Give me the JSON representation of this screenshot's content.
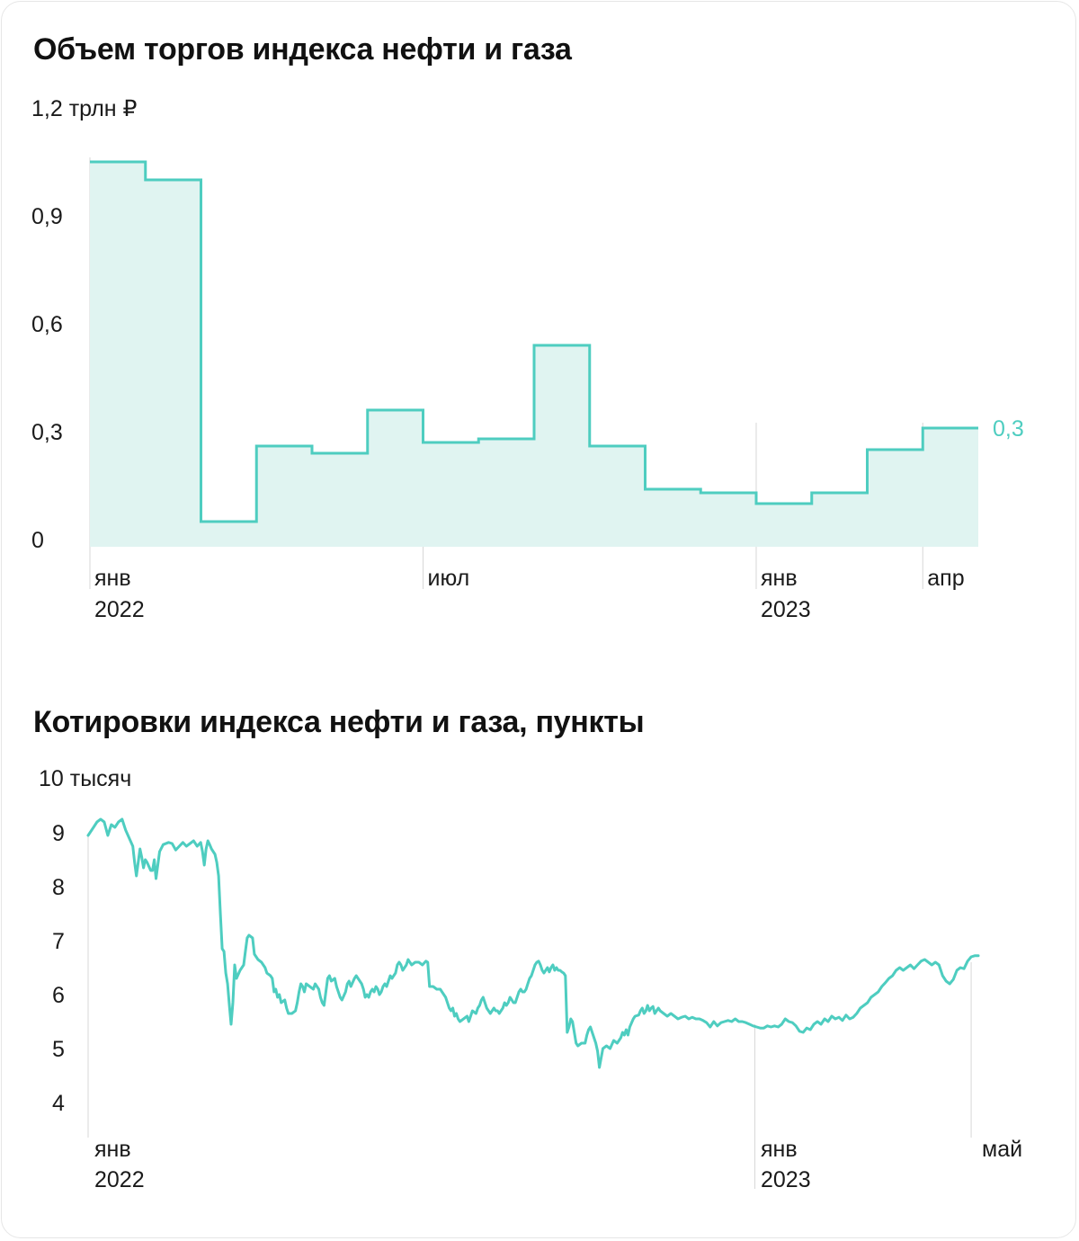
{
  "chart_data": [
    {
      "type": "area",
      "title": "Объем торгов индекса нефти и газа",
      "unit_label": "1,2 трлн ₽",
      "y_ticks": [
        "0",
        "0,3",
        "0,6",
        "0,9"
      ],
      "ylim": [
        0,
        1.2
      ],
      "x_ticks": [
        {
          "label": "янв",
          "sub": "2022"
        },
        {
          "label": "июл",
          "sub": ""
        },
        {
          "label": "янв",
          "sub": "2023"
        },
        {
          "label": "апр",
          "sub": ""
        }
      ],
      "categories": [
        "янв 2022",
        "фев 2022",
        "мар 2022",
        "апр 2022",
        "май 2022",
        "июн 2022",
        "июл 2022",
        "авг 2022",
        "сен 2022",
        "окт 2022",
        "ноя 2022",
        "дек 2022",
        "янв 2023",
        "фев 2023",
        "мар 2023",
        "апр 2023"
      ],
      "values": [
        1.05,
        1.0,
        0.05,
        0.26,
        0.24,
        0.36,
        0.27,
        0.28,
        0.54,
        0.26,
        0.14,
        0.13,
        0.1,
        0.13,
        0.25,
        0.31
      ],
      "last_label": "0,3",
      "grid": false,
      "colors": {
        "line": "#4ecdc0",
        "fill": "#e0f4f1",
        "last_label": "#4ecdc0"
      }
    },
    {
      "type": "line",
      "title": "Котировки индекса нефти и газа, пункты",
      "unit_label": "10 тысяч",
      "y_ticks": [
        "4",
        "5",
        "6",
        "7",
        "8",
        "9"
      ],
      "ylim": [
        4,
        10
      ],
      "x_ticks": [
        {
          "label": "янв",
          "sub": "2022"
        },
        {
          "label": "янв",
          "sub": "2023"
        },
        {
          "label": "май",
          "sub": ""
        }
      ],
      "x_range_days": [
        0,
        500
      ],
      "points": [
        [
          0,
          8.95
        ],
        [
          3,
          9.1
        ],
        [
          5,
          9.2
        ],
        [
          7,
          9.25
        ],
        [
          9,
          9.2
        ],
        [
          11,
          8.95
        ],
        [
          13,
          9.15
        ],
        [
          15,
          9.1
        ],
        [
          17,
          9.2
        ],
        [
          19,
          9.25
        ],
        [
          21,
          9.05
        ],
        [
          23,
          8.9
        ],
        [
          25,
          8.75
        ],
        [
          26,
          8.45
        ],
        [
          27,
          8.2
        ],
        [
          28,
          8.45
        ],
        [
          29,
          8.7
        ],
        [
          30,
          8.55
        ],
        [
          31,
          8.35
        ],
        [
          32,
          8.5
        ],
        [
          33,
          8.45
        ],
        [
          35,
          8.3
        ],
        [
          36,
          8.3
        ],
        [
          37,
          8.5
        ],
        [
          38,
          8.15
        ],
        [
          40,
          8.65
        ],
        [
          42,
          8.78
        ],
        [
          45,
          8.82
        ],
        [
          47,
          8.8
        ],
        [
          49,
          8.68
        ],
        [
          51,
          8.75
        ],
        [
          53,
          8.82
        ],
        [
          55,
          8.75
        ],
        [
          57,
          8.8
        ],
        [
          59,
          8.85
        ],
        [
          61,
          8.75
        ],
        [
          63,
          8.82
        ],
        [
          64,
          8.65
        ],
        [
          65,
          8.4
        ],
        [
          66,
          8.7
        ],
        [
          67,
          8.85
        ],
        [
          68,
          8.78
        ],
        [
          69,
          8.7
        ],
        [
          71,
          8.6
        ],
        [
          72,
          8.45
        ],
        [
          73,
          8.2
        ],
        [
          74,
          7.5
        ],
        [
          75,
          6.85
        ],
        [
          76,
          6.8
        ],
        [
          77,
          6.4
        ],
        [
          78,
          6.2
        ],
        [
          79,
          5.8
        ],
        [
          80,
          5.45
        ],
        [
          81,
          5.85
        ],
        [
          82,
          6.55
        ],
        [
          83,
          6.3
        ],
        [
          85,
          6.45
        ],
        [
          87,
          6.55
        ],
        [
          88,
          6.8
        ],
        [
          89,
          7.05
        ],
        [
          90,
          7.1
        ],
        [
          92,
          7.05
        ],
        [
          93,
          6.75
        ],
        [
          95,
          6.65
        ],
        [
          97,
          6.6
        ],
        [
          99,
          6.5
        ],
        [
          100,
          6.4
        ],
        [
          102,
          6.35
        ],
        [
          103,
          6.3
        ],
        [
          104,
          6.05
        ],
        [
          105,
          6.1
        ],
        [
          106,
          5.95
        ],
        [
          107,
          6.0
        ],
        [
          108,
          5.85
        ],
        [
          110,
          5.9
        ],
        [
          111,
          5.75
        ],
        [
          112,
          5.65
        ],
        [
          114,
          5.65
        ],
        [
          116,
          5.7
        ],
        [
          117,
          5.85
        ],
        [
          118,
          6.05
        ],
        [
          119,
          6.2
        ],
        [
          120,
          6.15
        ],
        [
          121,
          6.05
        ],
        [
          122,
          6.2
        ],
        [
          124,
          6.15
        ],
        [
          126,
          6.1
        ],
        [
          127,
          6.2
        ],
        [
          129,
          6.1
        ],
        [
          130,
          5.95
        ],
        [
          131,
          5.85
        ],
        [
          132,
          5.8
        ],
        [
          133,
          6.05
        ],
        [
          134,
          6.3
        ],
        [
          135,
          6.35
        ],
        [
          136,
          6.25
        ],
        [
          138,
          6.3
        ],
        [
          139,
          6.15
        ],
        [
          140,
          6.05
        ],
        [
          141,
          5.95
        ],
        [
          142,
          5.9
        ],
        [
          144,
          6.05
        ],
        [
          145,
          6.2
        ],
        [
          146,
          6.25
        ],
        [
          147,
          6.15
        ],
        [
          149,
          6.3
        ],
        [
          150,
          6.35
        ],
        [
          151,
          6.3
        ],
        [
          152,
          6.25
        ],
        [
          153,
          6.2
        ],
        [
          154,
          6.1
        ],
        [
          155,
          5.95
        ],
        [
          156,
          6.0
        ],
        [
          157,
          5.95
        ],
        [
          158,
          6.05
        ],
        [
          159,
          6.1
        ],
        [
          160,
          6.05
        ],
        [
          161,
          6.15
        ],
        [
          162,
          6.1
        ],
        [
          163,
          6.0
        ],
        [
          164,
          6.05
        ],
        [
          165,
          6.15
        ],
        [
          166,
          6.2
        ],
        [
          167,
          6.15
        ],
        [
          168,
          6.25
        ],
        [
          169,
          6.35
        ],
        [
          170,
          6.3
        ],
        [
          171,
          6.35
        ],
        [
          172,
          6.4
        ],
        [
          173,
          6.55
        ],
        [
          174,
          6.6
        ],
        [
          175,
          6.55
        ],
        [
          176,
          6.45
        ],
        [
          177,
          6.5
        ],
        [
          178,
          6.55
        ],
        [
          179,
          6.65
        ],
        [
          180,
          6.6
        ],
        [
          181,
          6.55
        ],
        [
          183,
          6.6
        ],
        [
          185,
          6.6
        ],
        [
          187,
          6.55
        ],
        [
          189,
          6.62
        ],
        [
          190,
          6.6
        ],
        [
          191,
          6.15
        ],
        [
          193,
          6.15
        ],
        [
          195,
          6.1
        ],
        [
          197,
          6.1
        ],
        [
          199,
          6.0
        ],
        [
          200,
          5.95
        ],
        [
          201,
          5.85
        ],
        [
          202,
          5.75
        ],
        [
          203,
          5.7
        ],
        [
          204,
          5.75
        ],
        [
          205,
          5.6
        ],
        [
          206,
          5.65
        ],
        [
          207,
          5.55
        ],
        [
          208,
          5.5
        ],
        [
          210,
          5.55
        ],
        [
          212,
          5.6
        ],
        [
          213,
          5.5
        ],
        [
          214,
          5.6
        ],
        [
          215,
          5.7
        ],
        [
          217,
          5.65
        ],
        [
          218,
          5.75
        ],
        [
          219,
          5.8
        ],
        [
          220,
          5.9
        ],
        [
          221,
          5.95
        ],
        [
          222,
          5.85
        ],
        [
          223,
          5.75
        ],
        [
          224,
          5.7
        ],
        [
          225,
          5.65
        ],
        [
          226,
          5.7
        ],
        [
          227,
          5.75
        ],
        [
          228,
          5.7
        ],
        [
          229,
          5.7
        ],
        [
          230,
          5.65
        ],
        [
          232,
          5.75
        ],
        [
          233,
          5.85
        ],
        [
          234,
          5.8
        ],
        [
          235,
          5.85
        ],
        [
          236,
          5.95
        ],
        [
          237,
          5.9
        ],
        [
          238,
          5.85
        ],
        [
          239,
          5.85
        ],
        [
          240,
          5.95
        ],
        [
          241,
          6.05
        ],
        [
          242,
          6.1
        ],
        [
          243,
          6.05
        ],
        [
          244,
          6.05
        ],
        [
          245,
          6.1
        ],
        [
          246,
          6.2
        ],
        [
          247,
          6.3
        ],
        [
          248,
          6.35
        ],
        [
          249,
          6.45
        ],
        [
          250,
          6.55
        ],
        [
          251,
          6.6
        ],
        [
          252,
          6.62
        ],
        [
          253,
          6.55
        ],
        [
          254,
          6.45
        ],
        [
          255,
          6.4
        ],
        [
          256,
          6.45
        ],
        [
          257,
          6.5
        ],
        [
          258,
          6.42
        ],
        [
          259,
          6.5
        ],
        [
          260,
          6.55
        ],
        [
          261,
          6.45
        ],
        [
          262,
          6.5
        ],
        [
          263,
          6.45
        ],
        [
          264,
          6.45
        ],
        [
          265,
          6.42
        ],
        [
          266,
          6.4
        ],
        [
          267,
          6.35
        ],
        [
          268,
          5.3
        ],
        [
          269,
          5.4
        ],
        [
          270,
          5.55
        ],
        [
          271,
          5.5
        ],
        [
          272,
          5.3
        ],
        [
          273,
          5.1
        ],
        [
          274,
          5.05
        ],
        [
          276,
          5.1
        ],
        [
          278,
          5.1
        ],
        [
          279,
          5.25
        ],
        [
          280,
          5.35
        ],
        [
          281,
          5.4
        ],
        [
          282,
          5.3
        ],
        [
          283,
          5.2
        ],
        [
          284,
          5.1
        ],
        [
          285,
          4.95
        ],
        [
          286,
          4.65
        ],
        [
          288,
          5.0
        ],
        [
          290,
          5.05
        ],
        [
          292,
          5.0
        ],
        [
          294,
          5.15
        ],
        [
          296,
          5.1
        ],
        [
          297,
          5.15
        ],
        [
          298,
          5.2
        ],
        [
          299,
          5.3
        ],
        [
          300,
          5.25
        ],
        [
          301,
          5.35
        ],
        [
          302,
          5.25
        ],
        [
          303,
          5.4
        ],
        [
          305,
          5.55
        ],
        [
          306,
          5.6
        ],
        [
          308,
          5.62
        ],
        [
          309,
          5.7
        ],
        [
          310,
          5.75
        ],
        [
          311,
          5.65
        ],
        [
          312,
          5.7
        ],
        [
          313,
          5.8
        ],
        [
          314,
          5.7
        ],
        [
          315,
          5.75
        ],
        [
          316,
          5.78
        ],
        [
          317,
          5.65
        ],
        [
          318,
          5.7
        ],
        [
          319,
          5.75
        ],
        [
          320,
          5.7
        ],
        [
          322,
          5.65
        ],
        [
          324,
          5.6
        ],
        [
          326,
          5.65
        ],
        [
          328,
          5.6
        ],
        [
          330,
          5.55
        ],
        [
          332,
          5.58
        ],
        [
          334,
          5.6
        ],
        [
          336,
          5.55
        ],
        [
          338,
          5.58
        ],
        [
          340,
          5.55
        ],
        [
          342,
          5.55
        ],
        [
          344,
          5.52
        ],
        [
          346,
          5.48
        ],
        [
          348,
          5.4
        ],
        [
          350,
          5.5
        ],
        [
          352,
          5.42
        ],
        [
          354,
          5.48
        ],
        [
          356,
          5.5
        ],
        [
          358,
          5.52
        ],
        [
          360,
          5.5
        ],
        [
          362,
          5.55
        ],
        [
          364,
          5.5
        ],
        [
          366,
          5.5
        ],
        [
          368,
          5.48
        ],
        [
          370,
          5.45
        ],
        [
          372,
          5.42
        ],
        [
          374,
          5.4
        ],
        [
          376,
          5.38
        ],
        [
          378,
          5.38
        ],
        [
          380,
          5.42
        ],
        [
          382,
          5.4
        ],
        [
          384,
          5.42
        ],
        [
          386,
          5.4
        ],
        [
          388,
          5.45
        ],
        [
          390,
          5.55
        ],
        [
          392,
          5.5
        ],
        [
          394,
          5.48
        ],
        [
          396,
          5.42
        ],
        [
          398,
          5.32
        ],
        [
          400,
          5.3
        ],
        [
          402,
          5.38
        ],
        [
          404,
          5.35
        ],
        [
          406,
          5.45
        ],
        [
          408,
          5.5
        ],
        [
          410,
          5.45
        ],
        [
          412,
          5.55
        ],
        [
          414,
          5.5
        ],
        [
          416,
          5.6
        ],
        [
          418,
          5.55
        ],
        [
          420,
          5.58
        ],
        [
          422,
          5.52
        ],
        [
          424,
          5.62
        ],
        [
          426,
          5.55
        ],
        [
          428,
          5.58
        ],
        [
          430,
          5.65
        ],
        [
          432,
          5.75
        ],
        [
          434,
          5.8
        ],
        [
          436,
          5.85
        ],
        [
          438,
          5.95
        ],
        [
          440,
          6.0
        ],
        [
          442,
          6.05
        ],
        [
          444,
          6.15
        ],
        [
          446,
          6.22
        ],
        [
          448,
          6.3
        ],
        [
          450,
          6.35
        ],
        [
          452,
          6.45
        ],
        [
          454,
          6.5
        ],
        [
          456,
          6.45
        ],
        [
          458,
          6.5
        ],
        [
          460,
          6.55
        ],
        [
          462,
          6.48
        ],
        [
          464,
          6.55
        ],
        [
          466,
          6.62
        ],
        [
          468,
          6.65
        ],
        [
          470,
          6.6
        ],
        [
          472,
          6.55
        ],
        [
          474,
          6.6
        ],
        [
          476,
          6.55
        ],
        [
          478,
          6.35
        ],
        [
          480,
          6.25
        ],
        [
          482,
          6.2
        ],
        [
          484,
          6.28
        ],
        [
          486,
          6.45
        ],
        [
          488,
          6.5
        ],
        [
          490,
          6.48
        ],
        [
          492,
          6.62
        ],
        [
          494,
          6.7
        ],
        [
          496,
          6.72
        ],
        [
          498,
          6.72
        ]
      ],
      "grid": false,
      "colors": {
        "line": "#4ecdc0"
      }
    }
  ]
}
